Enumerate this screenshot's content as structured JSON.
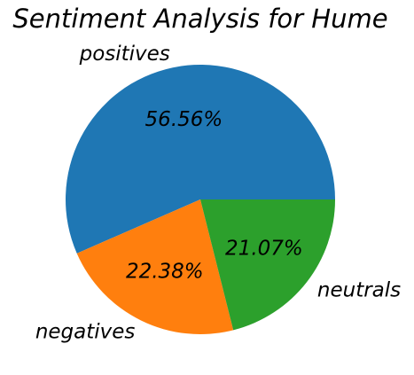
{
  "chart_data": {
    "type": "pie",
    "title": "Sentiment Analysis for Hume",
    "slices": [
      {
        "label": "positives",
        "value": 56.56,
        "pct_label": "56.56%",
        "color": "#1f77b4"
      },
      {
        "label": "negatives",
        "value": 22.38,
        "pct_label": "22.38%",
        "color": "#ff7f0e"
      },
      {
        "label": "neutrals",
        "value": 21.07,
        "pct_label": "21.07%",
        "color": "#2ca02c"
      }
    ],
    "start_angle": "0 degrees (3 o'clock), counter-clockwise",
    "legend": "none"
  }
}
